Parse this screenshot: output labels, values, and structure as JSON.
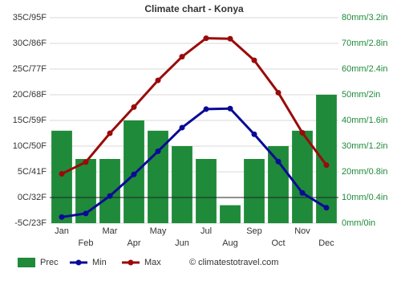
{
  "chart_data": {
    "type": "bar",
    "title": "Climate chart - Konya",
    "source": "© climatestotravel.com",
    "categories": [
      "Jan",
      "Feb",
      "Mar",
      "Apr",
      "May",
      "Jun",
      "Jul",
      "Aug",
      "Sep",
      "Oct",
      "Nov",
      "Dec"
    ],
    "ylim": [
      -5,
      35
    ],
    "yticks": [
      {
        "value": -5,
        "label": "-5C/23F"
      },
      {
        "value": 0,
        "label": "0C/32F"
      },
      {
        "value": 5,
        "label": "5C/41F"
      },
      {
        "value": 10,
        "label": "10C/50F"
      },
      {
        "value": 15,
        "label": "15C/59F"
      },
      {
        "value": 20,
        "label": "20C/68F"
      },
      {
        "value": 25,
        "label": "25C/77F"
      },
      {
        "value": 30,
        "label": "30C/86F"
      },
      {
        "value": 35,
        "label": "35C/95F"
      }
    ],
    "y2lim": [
      0,
      80
    ],
    "y2ticks": [
      {
        "value": 0,
        "label": "0mm/0in"
      },
      {
        "value": 10,
        "label": "10mm/0.4in"
      },
      {
        "value": 20,
        "label": "20mm/0.8in"
      },
      {
        "value": 30,
        "label": "30mm/1.2in"
      },
      {
        "value": 40,
        "label": "40mm/1.6in"
      },
      {
        "value": 50,
        "label": "50mm/2in"
      },
      {
        "value": 60,
        "label": "60mm/2.4in"
      },
      {
        "value": 70,
        "label": "70mm/2.8in"
      },
      {
        "value": 80,
        "label": "80mm/3.2in"
      }
    ],
    "grid": true,
    "series": [
      {
        "name": "Prec",
        "type": "bar",
        "axis": "y2",
        "color": "#1f8a3a",
        "values": [
          36,
          25,
          25,
          40,
          36,
          30,
          25,
          7,
          25,
          30,
          36,
          50
        ]
      },
      {
        "name": "Min",
        "type": "line",
        "color": "#0a0a96",
        "values": [
          -3.8,
          -3.1,
          0.3,
          4.5,
          9.0,
          13.6,
          17.2,
          17.3,
          12.3,
          7.0,
          0.9,
          -2.0
        ]
      },
      {
        "name": "Max",
        "type": "line",
        "color": "#9b0a0a",
        "values": [
          4.6,
          6.9,
          12.5,
          17.6,
          22.8,
          27.4,
          31.0,
          30.9,
          26.7,
          20.4,
          12.6,
          6.3
        ]
      }
    ]
  }
}
